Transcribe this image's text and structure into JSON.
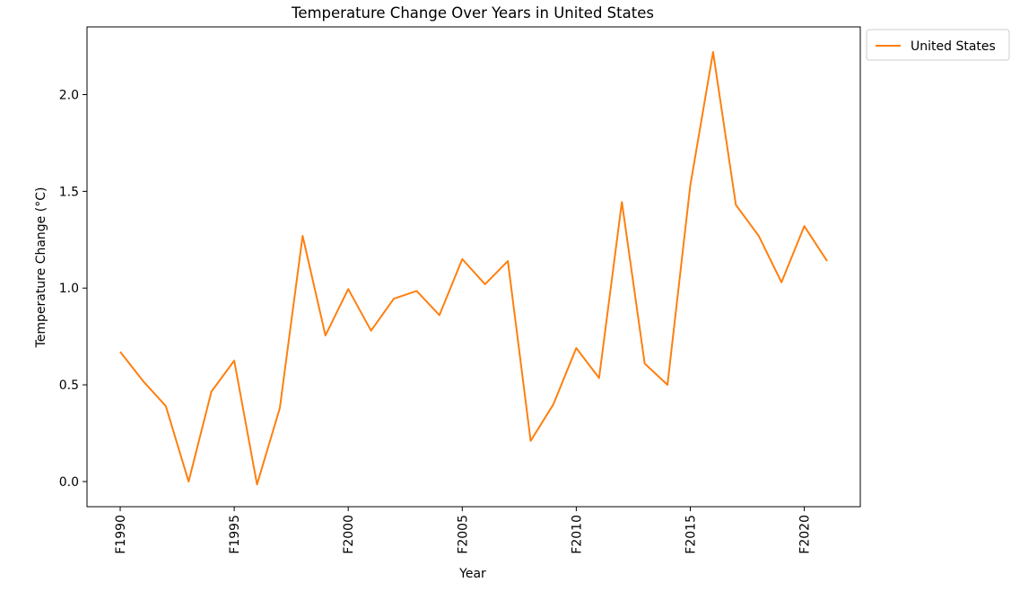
{
  "chart_data": {
    "type": "line",
    "title": "Temperature Change Over Years in United States",
    "xlabel": "Year",
    "ylabel": "Temperature Change (°C)",
    "x": [
      "F1990",
      "F1991",
      "F1992",
      "F1993",
      "F1994",
      "F1995",
      "F1996",
      "F1997",
      "F1998",
      "F1999",
      "F2000",
      "F2001",
      "F2002",
      "F2003",
      "F2004",
      "F2005",
      "F2006",
      "F2007",
      "F2008",
      "F2009",
      "F2010",
      "F2011",
      "F2012",
      "F2013",
      "F2014",
      "F2015",
      "F2016",
      "F2017",
      "F2018",
      "F2019",
      "F2020",
      "F2021"
    ],
    "x_tick_labels": [
      "F1990",
      "F1995",
      "F2000",
      "F2005",
      "F2010",
      "F2015",
      "F2020"
    ],
    "series": [
      {
        "name": "United States",
        "color": "#ff7f0e",
        "values": [
          0.671,
          0.52,
          0.39,
          0.0,
          0.465,
          0.625,
          -0.015,
          0.38,
          1.27,
          0.755,
          0.995,
          0.78,
          0.945,
          0.985,
          0.86,
          1.15,
          1.02,
          1.14,
          0.21,
          0.4,
          0.69,
          0.535,
          1.445,
          0.61,
          0.5,
          1.53,
          2.22,
          1.43,
          1.27,
          1.03,
          1.32,
          1.14
        ]
      }
    ],
    "ylim": [
      -0.13,
      2.35
    ],
    "y_ticks": [
      0.0,
      0.5,
      1.0,
      1.5,
      2.0
    ],
    "y_tick_labels": [
      "0.0",
      "0.5",
      "1.0",
      "1.5",
      "2.0"
    ],
    "grid": false,
    "legend_position": "outside-top-right"
  }
}
